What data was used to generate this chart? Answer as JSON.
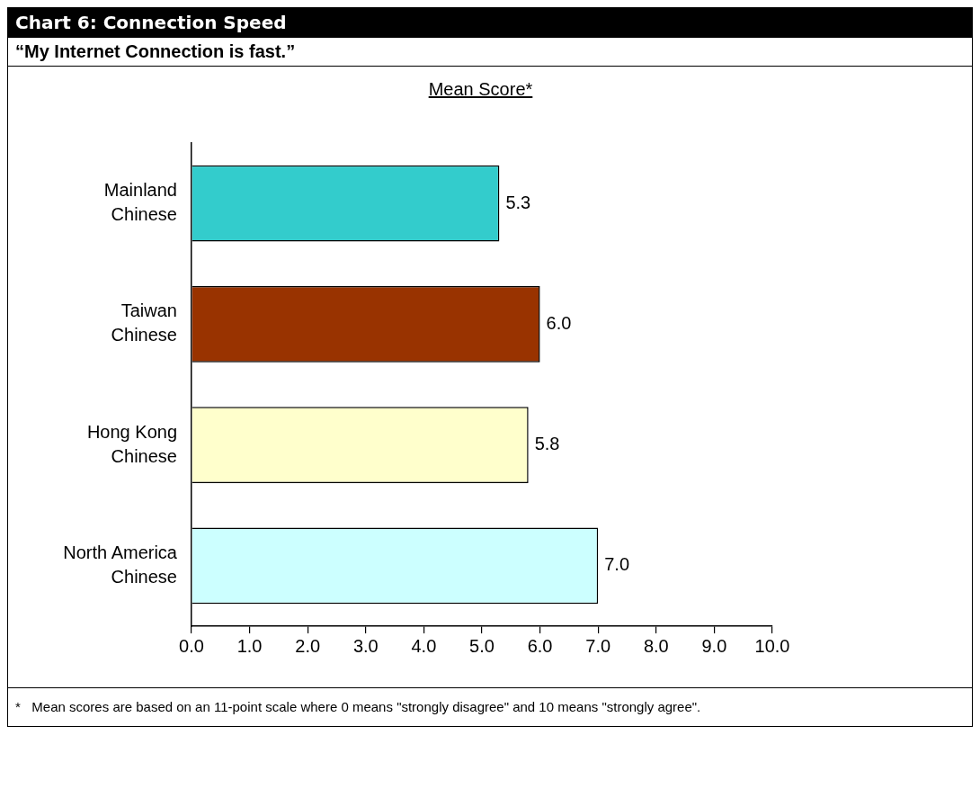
{
  "chart_data": {
    "type": "bar",
    "orientation": "horizontal",
    "title": "Chart 6: Connection Speed",
    "subtitle": "“My Internet Connection is fast.”",
    "xlabel": "Mean Score*",
    "categories": [
      "Mainland Chinese",
      "Taiwan Chinese",
      "Hong Kong Chinese",
      "North America Chinese"
    ],
    "values": [
      5.3,
      6.0,
      5.8,
      7.0
    ],
    "colors": [
      "#33cccc",
      "#993300",
      "#ffffcc",
      "#ccffff"
    ],
    "xlim": [
      0,
      10
    ],
    "xticks": [
      {
        "value": 0,
        "label": "0.0"
      },
      {
        "value": 1,
        "label": "1.0"
      },
      {
        "value": 2,
        "label": "2.0"
      },
      {
        "value": 3,
        "label": "3.0"
      },
      {
        "value": 4,
        "label": "4.0"
      },
      {
        "value": 5,
        "label": "5.0"
      },
      {
        "value": 6,
        "label": "6.0"
      },
      {
        "value": 7,
        "label": "7.0"
      },
      {
        "value": 8,
        "label": "8.0"
      },
      {
        "value": 9,
        "label": "9.0"
      },
      {
        "value": 10,
        "label": "10.0"
      }
    ],
    "value_labels": [
      "5.3",
      "6.0",
      "5.8",
      "7.0"
    ],
    "grid": false,
    "legend": false,
    "annotations": [
      "*   Mean scores are based on an 11-point scale where 0 means \"strongly disagree\" and 10 means \"strongly agree\"."
    ]
  }
}
